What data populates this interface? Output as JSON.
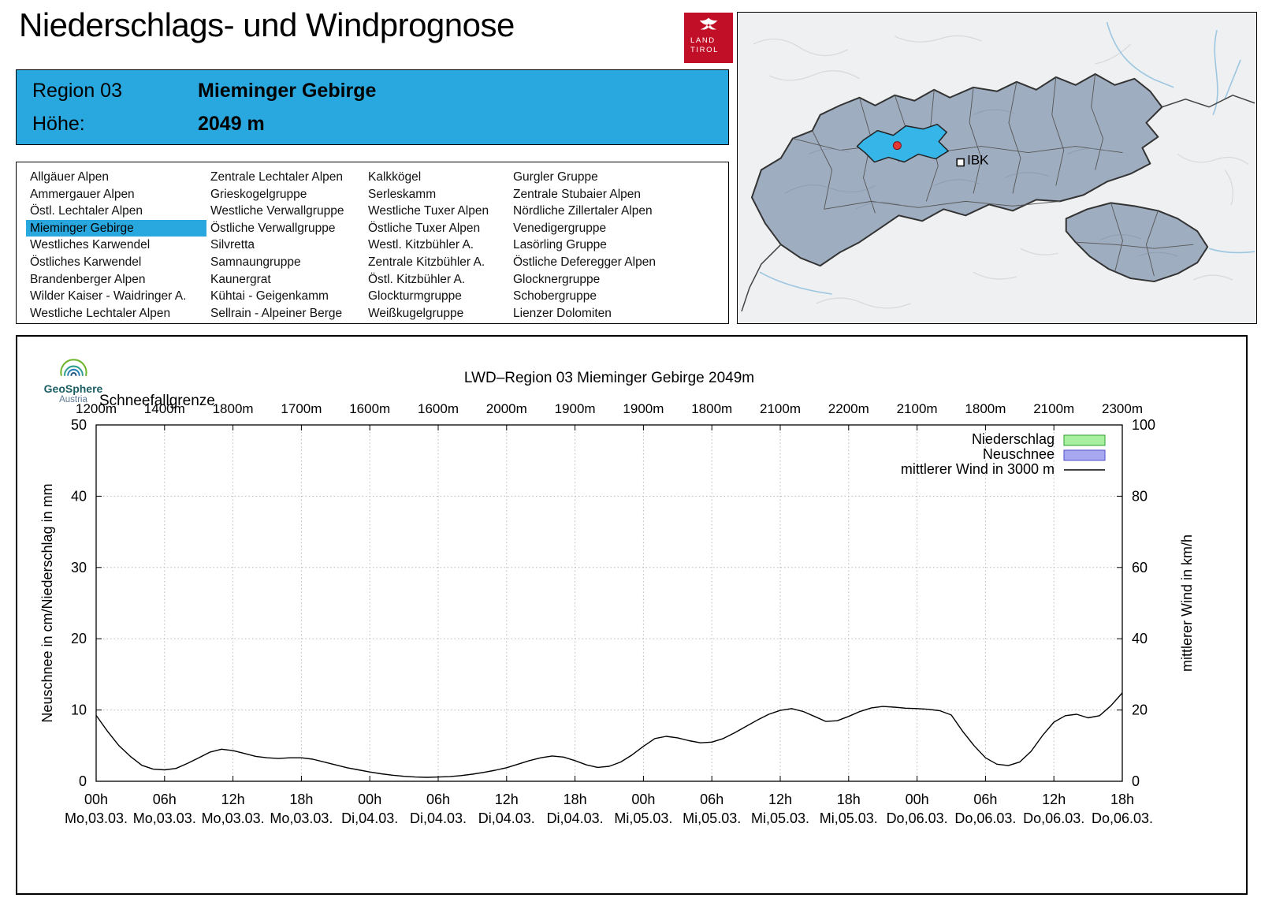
{
  "header": {
    "title": "Niederschlags- und Windprognose"
  },
  "logo": {
    "line1": "LAND",
    "line2": "TIROL"
  },
  "region_box": {
    "region_label": "Region 03",
    "region_name": "Mieminger Gebirge",
    "hoehe_label": "Höhe:",
    "hoehe_value": "2049 m"
  },
  "map": {
    "ibk_label": "IBK",
    "highlight_color": "#35b5e8"
  },
  "region_list": {
    "selected": "Mieminger Gebirge",
    "columns": [
      [
        "Allgäuer Alpen",
        "Ammergauer Alpen",
        "Östl. Lechtaler Alpen",
        "Mieminger Gebirge",
        "Westliches Karwendel",
        "Östliches Karwendel",
        "Brandenberger Alpen",
        "Wilder Kaiser - Waidringer A.",
        "Westliche Lechtaler Alpen"
      ],
      [
        "Zentrale Lechtaler Alpen",
        "Grieskogelgruppe",
        "Westliche Verwallgruppe",
        "Östliche Verwallgruppe",
        "Silvretta",
        "Samnaungruppe",
        "Kaunergrat",
        "Kühtai - Geigenkamm",
        "Sellrain - Alpeiner Berge"
      ],
      [
        "Kalkkögel",
        "Serleskamm",
        "Westliche Tuxer Alpen",
        "Östliche Tuxer Alpen",
        "Westl. Kitzbühler A.",
        "Zentrale Kitzbühler A.",
        "Östl. Kitzbühler A.",
        "Glockturmgruppe",
        "Weißkugelgruppe"
      ],
      [
        "Gurgler Gruppe",
        "Zentrale Stubaier Alpen",
        "Nördliche Zillertaler Alpen",
        "Venedigergruppe",
        "Lasörling Gruppe",
        "Östliche Deferegger Alpen",
        "Glocknergruppe",
        "Schobergruppe",
        "Lienzer Dolomiten"
      ]
    ]
  },
  "geosphere": {
    "name": "GeoSphere",
    "sub": "Austria"
  },
  "chart_data": {
    "type": "line",
    "title": "LWD–Region 03 Mieminger Gebirge 2049m",
    "snowline_label": "Schneefallgrenze",
    "snowline_values": [
      "1200m",
      "1400m",
      "1800m",
      "1700m",
      "1600m",
      "1600m",
      "2000m",
      "1900m",
      "1900m",
      "1800m",
      "2100m",
      "2200m",
      "2100m",
      "1800m",
      "2100m",
      "2300m"
    ],
    "ylabel_left": "Neuschnee in cm/Niederschlag in mm",
    "ylabel_right": "mittlerer Wind in km/h",
    "ylim_left": [
      0,
      50
    ],
    "ylim_right": [
      0,
      100
    ],
    "yticks_left": [
      0,
      10,
      20,
      30,
      40,
      50
    ],
    "yticks_right": [
      0,
      20,
      40,
      60,
      80,
      100
    ],
    "x_range_hours": [
      0,
      90
    ],
    "x_hours": [
      "00h",
      "06h",
      "12h",
      "18h",
      "00h",
      "06h",
      "12h",
      "18h",
      "00h",
      "06h",
      "12h",
      "18h",
      "00h",
      "06h",
      "12h",
      "18h"
    ],
    "x_dates": [
      "Mo,03.03.",
      "Mo,03.03.",
      "Mo,03.03.",
      "Mo,03.03.",
      "Di,04.03.",
      "Di,04.03.",
      "Di,04.03.",
      "Di,04.03.",
      "Mi,05.03.",
      "Mi,05.03.",
      "Mi,05.03.",
      "Mi,05.03.",
      "Do,06.03.",
      "Do,06.03.",
      "Do,06.03.",
      "Do,06.03."
    ],
    "grid": true,
    "legend_position": "top-right",
    "legend": [
      {
        "label": "Niederschlag",
        "type": "box",
        "fill": "#a8f0a0",
        "stroke": "#2ca02c"
      },
      {
        "label": "Neuschnee",
        "type": "box",
        "fill": "#a8a8f0",
        "stroke": "#5050c8"
      },
      {
        "label": "mittlerer Wind in 3000 m",
        "type": "line",
        "stroke": "#000000"
      }
    ],
    "series": [
      {
        "name": "mittlerer Wind in 3000 m",
        "axis": "right",
        "unit": "km/h",
        "points": [
          [
            0,
            18.5
          ],
          [
            1,
            14
          ],
          [
            2,
            10
          ],
          [
            3,
            7
          ],
          [
            4,
            4.5
          ],
          [
            5,
            3.4
          ],
          [
            6,
            3.2
          ],
          [
            7,
            3.6
          ],
          [
            8,
            5
          ],
          [
            9,
            6.6
          ],
          [
            10,
            8.2
          ],
          [
            11,
            9
          ],
          [
            12,
            8.6
          ],
          [
            13,
            7.8
          ],
          [
            14,
            7
          ],
          [
            15,
            6.6
          ],
          [
            16,
            6.4
          ],
          [
            17,
            6.6
          ],
          [
            18,
            6.6
          ],
          [
            19,
            6.2
          ],
          [
            20,
            5.4
          ],
          [
            21,
            4.6
          ],
          [
            22,
            3.8
          ],
          [
            23,
            3.2
          ],
          [
            24,
            2.6
          ],
          [
            25,
            2.1
          ],
          [
            26,
            1.7
          ],
          [
            27,
            1.4
          ],
          [
            28,
            1.2
          ],
          [
            29,
            1.1
          ],
          [
            30,
            1.2
          ],
          [
            31,
            1.3
          ],
          [
            32,
            1.6
          ],
          [
            33,
            2.0
          ],
          [
            34,
            2.5
          ],
          [
            35,
            3.1
          ],
          [
            36,
            3.8
          ],
          [
            37,
            4.8
          ],
          [
            38,
            5.8
          ],
          [
            39,
            6.6
          ],
          [
            40,
            7.1
          ],
          [
            41,
            6.8
          ],
          [
            42,
            5.8
          ],
          [
            43,
            4.6
          ],
          [
            44,
            3.9
          ],
          [
            45,
            4.2
          ],
          [
            46,
            5.4
          ],
          [
            47,
            7.4
          ],
          [
            48,
            9.8
          ],
          [
            49,
            12.0
          ],
          [
            50,
            12.6
          ],
          [
            51,
            12.2
          ],
          [
            52,
            11.4
          ],
          [
            53,
            10.8
          ],
          [
            54,
            11.0
          ],
          [
            55,
            12.0
          ],
          [
            56,
            13.6
          ],
          [
            57,
            15.4
          ],
          [
            58,
            17.2
          ],
          [
            59,
            18.8
          ],
          [
            60,
            19.9
          ],
          [
            61,
            20.4
          ],
          [
            62,
            19.6
          ],
          [
            63,
            18.2
          ],
          [
            64,
            16.8
          ],
          [
            65,
            17.0
          ],
          [
            66,
            18.2
          ],
          [
            67,
            19.6
          ],
          [
            68,
            20.6
          ],
          [
            69,
            21.0
          ],
          [
            70,
            20.8
          ],
          [
            71,
            20.5
          ],
          [
            72,
            20.4
          ],
          [
            73,
            20.2
          ],
          [
            74,
            19.8
          ],
          [
            75,
            18.6
          ],
          [
            76,
            14.0
          ],
          [
            77,
            10.0
          ],
          [
            78,
            6.6
          ],
          [
            79,
            4.8
          ],
          [
            80,
            4.4
          ],
          [
            81,
            5.4
          ],
          [
            82,
            8.4
          ],
          [
            83,
            12.8
          ],
          [
            84,
            16.6
          ],
          [
            85,
            18.4
          ],
          [
            86,
            18.8
          ],
          [
            87,
            17.8
          ],
          [
            88,
            18.4
          ],
          [
            89,
            21.2
          ],
          [
            90,
            24.8
          ]
        ]
      }
    ]
  }
}
